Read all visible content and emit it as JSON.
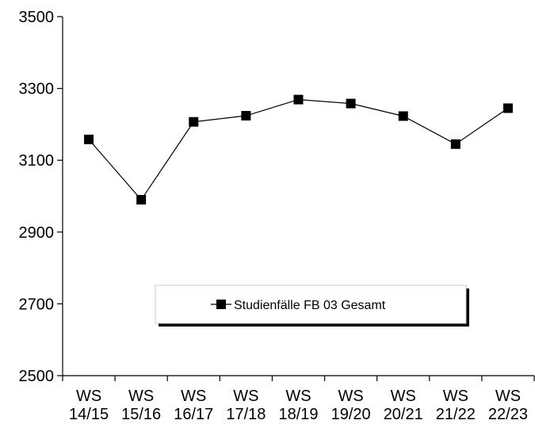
{
  "chart_data": {
    "type": "line",
    "categories": [
      [
        "WS",
        "14/15"
      ],
      [
        "WS",
        "15/16"
      ],
      [
        "WS",
        "16/17"
      ],
      [
        "WS",
        "17/18"
      ],
      [
        "WS",
        "18/19"
      ],
      [
        "WS",
        "19/20"
      ],
      [
        "WS",
        "20/21"
      ],
      [
        "WS",
        "21/22"
      ],
      [
        "WS",
        "22/23"
      ]
    ],
    "series": [
      {
        "name": "Studienfälle FB 03 Gesamt",
        "marker": "square",
        "color": "#000000",
        "values": [
          3158,
          2990,
          3207,
          3224,
          3269,
          3258,
          3223,
          3145,
          3245
        ]
      }
    ],
    "y_ticks": [
      2500,
      2700,
      2900,
      3100,
      3300,
      3500
    ],
    "ylim": [
      2500,
      3500
    ],
    "grid": false,
    "legend_position": "lower-center",
    "title": "",
    "xlabel": "",
    "ylabel": ""
  }
}
